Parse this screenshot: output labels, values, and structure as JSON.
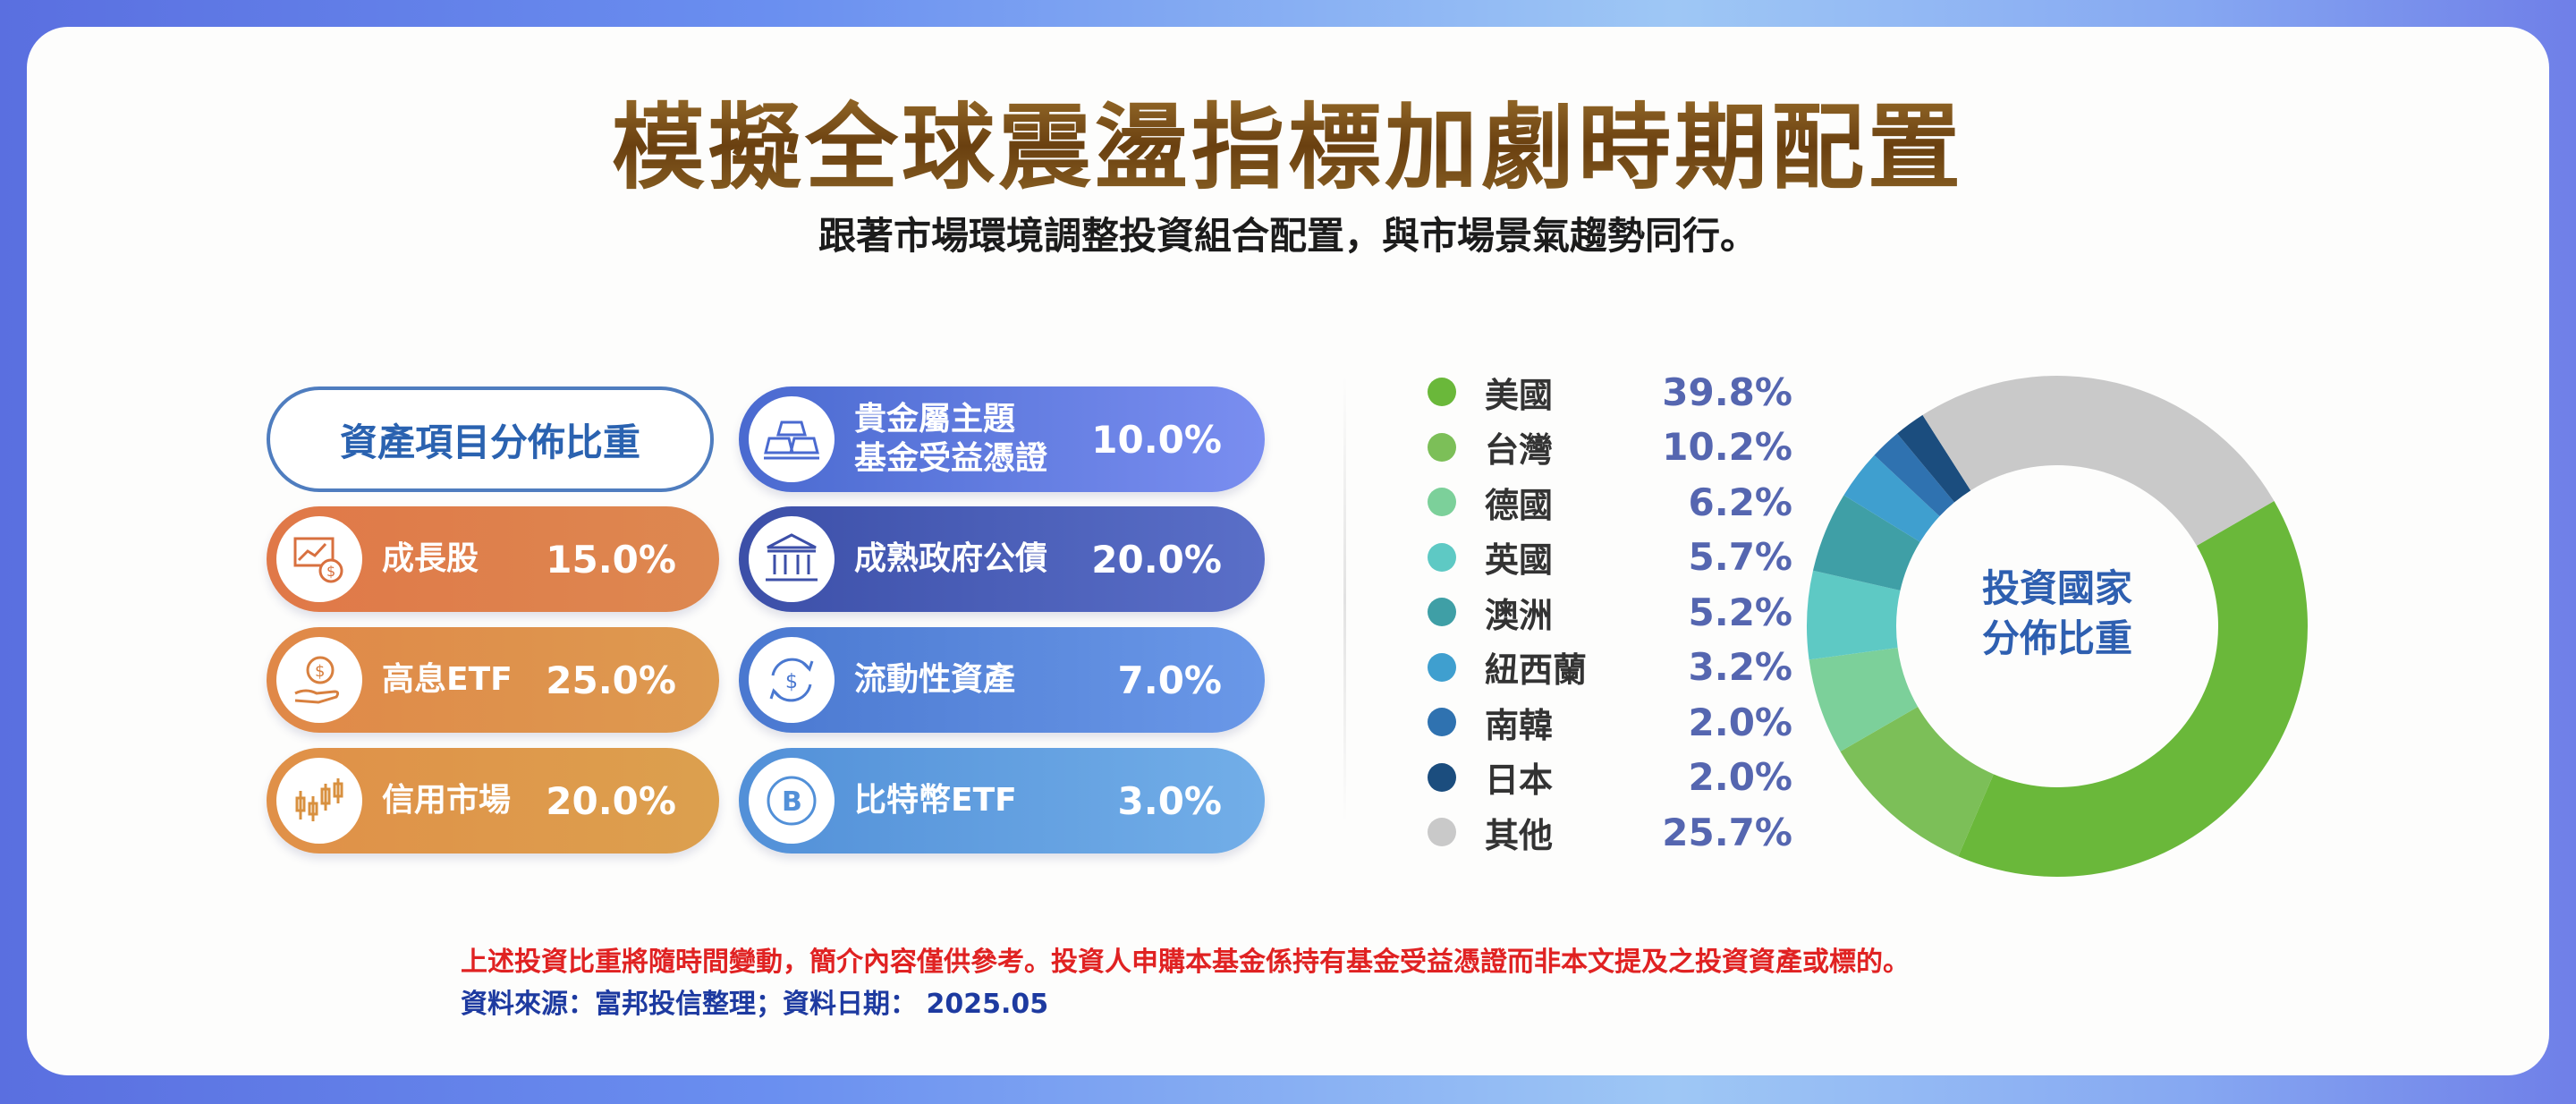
{
  "title": "模擬全球震盪指標加劇時期配置",
  "subtitle": "跟著市場環境調整投資組合配置，與市場景氣趨勢同行。",
  "asset_header": "資產項目分佈比重",
  "assets": [
    {
      "label": "成長股",
      "value": "15.0%",
      "icon": "growth-chart-icon"
    },
    {
      "label": "高息ETF",
      "value": "25.0%",
      "icon": "dollar-hand-icon"
    },
    {
      "label": "信用市場",
      "value": "20.0%",
      "icon": "candlestick-icon"
    },
    {
      "label": "貴金屬主題\n基金受益憑證",
      "value": "10.0%",
      "icon": "gold-bars-icon"
    },
    {
      "label": "成熟政府公債",
      "value": "20.0%",
      "icon": "government-building-icon"
    },
    {
      "label": "流動性資產",
      "value": "7.0%",
      "icon": "dollar-cycle-icon"
    },
    {
      "label": "比特幣ETF",
      "value": "3.0%",
      "icon": "bitcoin-icon"
    }
  ],
  "chart_center_label": "投資國家\n分佈比重",
  "chart_data": {
    "type": "pie",
    "variant": "donut",
    "categories": [
      "美國",
      "台灣",
      "德國",
      "英國",
      "澳洲",
      "紐西蘭",
      "南韓",
      "日本",
      "其他"
    ],
    "labels": [
      "39.8%",
      "10.2%",
      "6.2%",
      "5.7%",
      "5.2%",
      "3.2%",
      "2.0%",
      "2.0%",
      "25.7%"
    ],
    "values": [
      39.8,
      10.2,
      6.2,
      5.7,
      5.2,
      3.2,
      2.0,
      2.0,
      25.7
    ],
    "colors": [
      "#6ab83a",
      "#7cbf58",
      "#7cd09a",
      "#5ec9c4",
      "#3f9fa6",
      "#3f9fcf",
      "#2f72b0",
      "#1b4d7e",
      "#c9c9c9"
    ],
    "legend_placement": "left"
  },
  "note": "上述投資比重將隨時間變動，簡介內容僅供參考。投資人申購本基金係持有基金受益憑證而非本文提及之投資資產或標的。",
  "source": "資料來源：富邦投信整理；資料日期： 2025.05"
}
